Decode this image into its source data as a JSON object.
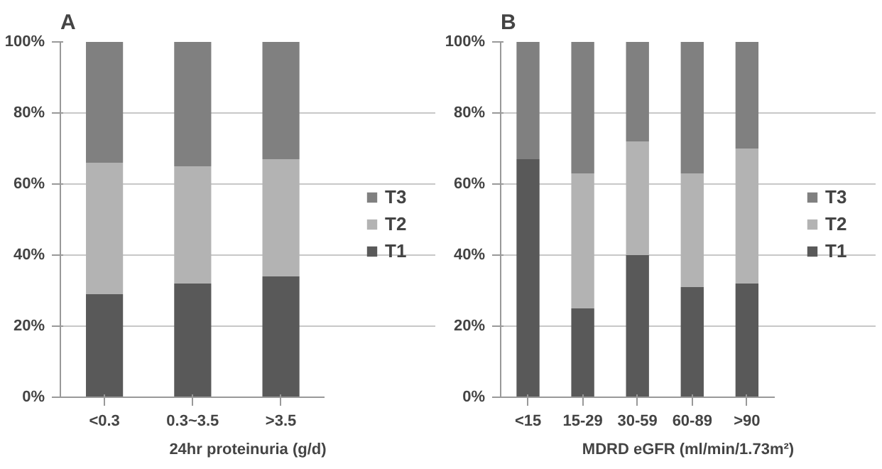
{
  "chart_data": [
    {
      "type": "bar",
      "title": "A",
      "xlabel": "24hr proteinuria (g/d)",
      "categories": [
        "<0.3",
        "0.3~3.5",
        ">3.5"
      ],
      "stacked": true,
      "series": [
        {
          "name": "T1",
          "color": "#595959",
          "values": [
            29,
            32,
            34
          ]
        },
        {
          "name": "T2",
          "color": "#b3b3b3",
          "values": [
            37,
            33,
            33
          ]
        },
        {
          "name": "T3",
          "color": "#808080",
          "values": [
            34,
            35,
            33
          ]
        }
      ],
      "ylim": [
        0,
        100
      ],
      "yticks": [
        {
          "value": 0,
          "label": "0%"
        },
        {
          "value": 20,
          "label": "20%"
        },
        {
          "value": 40,
          "label": "40%"
        },
        {
          "value": 60,
          "label": "60%"
        },
        {
          "value": 80,
          "label": "80%"
        },
        {
          "value": 100,
          "label": "100%"
        }
      ],
      "grid": "y",
      "legend": "right"
    },
    {
      "type": "bar",
      "title": "B",
      "xlabel": "MDRD eGFR (ml/min/1.73m²)",
      "categories": [
        "<15",
        "15-29",
        "30-59",
        "60-89",
        ">90"
      ],
      "stacked": true,
      "series": [
        {
          "name": "T1",
          "color": "#595959",
          "values": [
            67,
            25,
            40,
            31,
            32
          ]
        },
        {
          "name": "T2",
          "color": "#b3b3b3",
          "values": [
            0,
            38,
            32,
            32,
            38
          ]
        },
        {
          "name": "T3",
          "color": "#808080",
          "values": [
            33,
            37,
            28,
            37,
            30
          ]
        }
      ],
      "ylim": [
        0,
        100
      ],
      "yticks": [
        {
          "value": 0,
          "label": "0%"
        },
        {
          "value": 20,
          "label": "20%"
        },
        {
          "value": 40,
          "label": "40%"
        },
        {
          "value": 60,
          "label": "60%"
        },
        {
          "value": 80,
          "label": "80%"
        },
        {
          "value": 100,
          "label": "100%"
        }
      ],
      "grid": "y",
      "legend": "right"
    }
  ]
}
